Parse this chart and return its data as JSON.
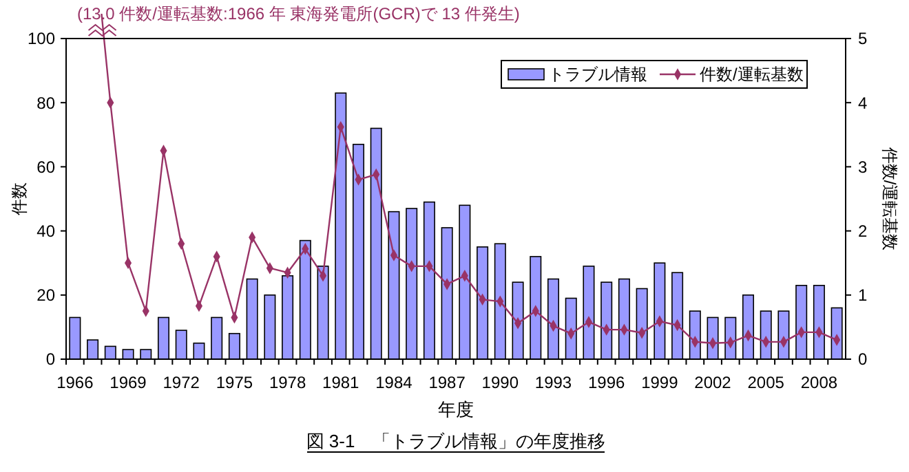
{
  "chart_data": {
    "type": "bar",
    "title": "図 3-1　「トラブル情報」の年度推移",
    "xlabel": "年度",
    "ylabel": "件数",
    "y2label": "件数/運転基数",
    "annotations": [
      "(13.0 件数/運転基数:1966 年  東海発電所(GCR)で 13 件発生)"
    ],
    "categories": [
      "1966",
      null,
      null,
      "1969",
      null,
      null,
      "1972",
      null,
      null,
      "1975",
      null,
      null,
      "1978",
      null,
      null,
      "1981",
      null,
      null,
      "1984",
      null,
      null,
      "1987",
      null,
      null,
      "1990",
      null,
      null,
      "1993",
      null,
      null,
      "1996",
      null,
      null,
      "1999",
      null,
      null,
      "2002",
      null,
      null,
      "2005",
      null,
      null,
      "2008",
      null
    ],
    "series": [
      {
        "name": "トラブル情報",
        "color": "#9999ff",
        "values": [
          13,
          6,
          4,
          3,
          3,
          13,
          9,
          5,
          13,
          8,
          25,
          20,
          26,
          37,
          29,
          83,
          67,
          72,
          46,
          47,
          49,
          41,
          48,
          35,
          36,
          24,
          32,
          25,
          19,
          29,
          24,
          25,
          22,
          30,
          27,
          15,
          13,
          13,
          20,
          15,
          15,
          23,
          23,
          16
        ]
      },
      {
        "name": "件数/運転基数",
        "type": "line",
        "axis": "y2",
        "color": "#993366",
        "marker": "diamond",
        "values": [
          null,
          null,
          4.0,
          1.5,
          0.75,
          3.25,
          1.8,
          0.83,
          1.6,
          0.65,
          1.9,
          1.42,
          1.35,
          1.72,
          1.3,
          3.62,
          2.8,
          2.88,
          1.62,
          1.45,
          1.45,
          1.17,
          1.3,
          0.93,
          0.9,
          0.56,
          0.75,
          0.52,
          0.4,
          0.58,
          0.46,
          0.46,
          0.41,
          0.59,
          0.53,
          0.27,
          0.25,
          0.26,
          0.37,
          0.27,
          0.27,
          0.42,
          0.42,
          0.3
        ]
      }
    ],
    "ylim": [
      0,
      100
    ],
    "yticks": [
      0,
      20,
      40,
      60,
      80,
      100
    ],
    "y2lim": [
      0,
      5
    ],
    "y2ticks": [
      0,
      1,
      2,
      3,
      4,
      5
    ],
    "grid": false,
    "legend": "top right"
  }
}
